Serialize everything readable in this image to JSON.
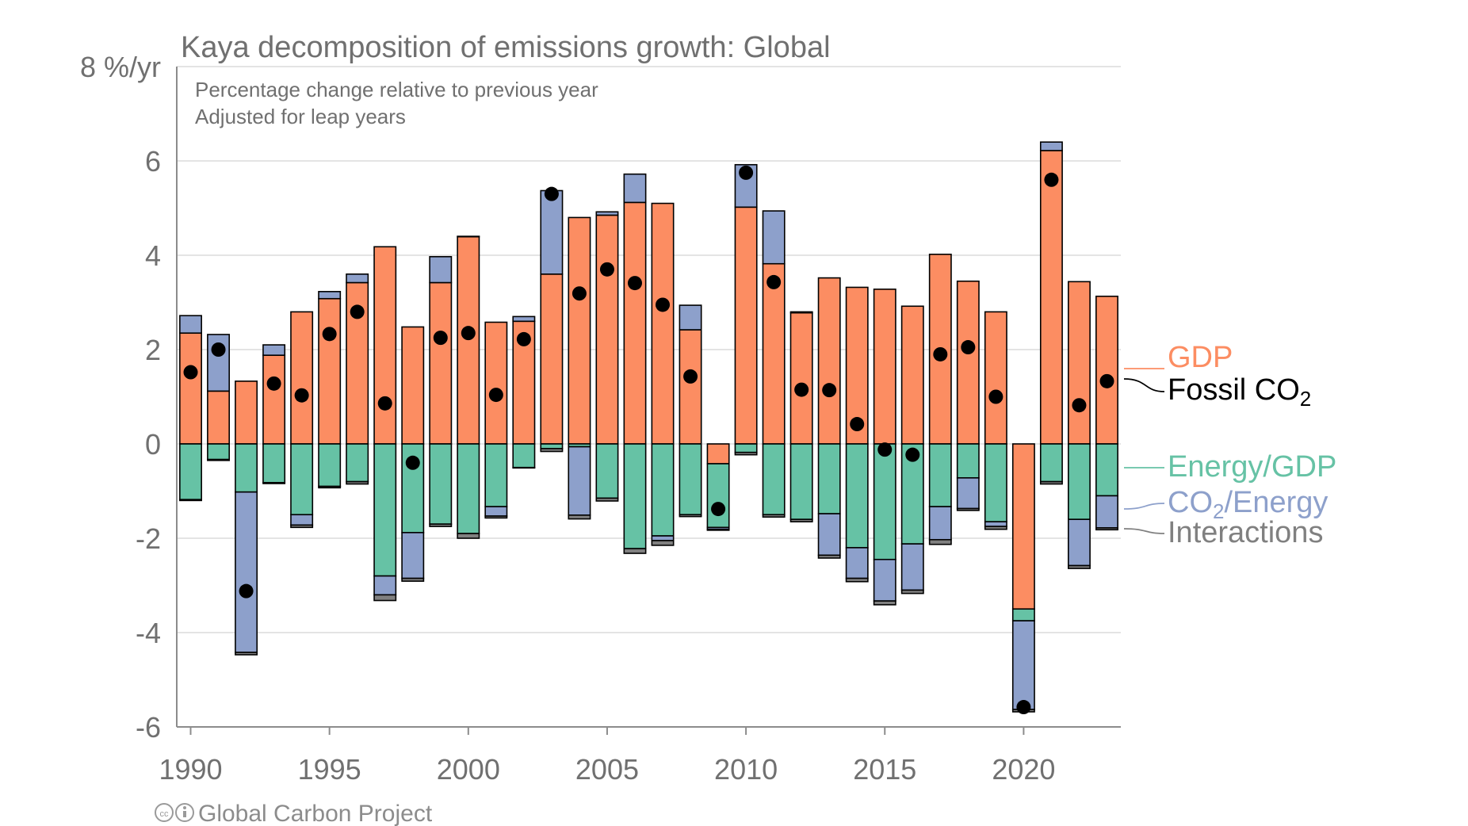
{
  "chart_data": {
    "type": "bar",
    "title": "Kaya decomposition of emissions growth: Global",
    "subtitle_lines": [
      "Percentage change relative to previous year",
      "Adjusted for leap years"
    ],
    "ylabel": "%/yr",
    "ylim": [
      -6,
      8
    ],
    "yticks": [
      -6,
      -4,
      -2,
      0,
      2,
      4,
      6,
      8
    ],
    "ytick_labels": [
      "-6",
      "-4",
      "-2",
      "0",
      "2",
      "4",
      "6",
      "8 %/yr"
    ],
    "xlim": [
      1989.5,
      2023.5
    ],
    "xticks": [
      1990,
      1995,
      2000,
      2005,
      2010,
      2015,
      2020
    ],
    "xtick_labels": [
      "1990",
      "1995",
      "2000",
      "2005",
      "2010",
      "2015",
      "2020"
    ],
    "x": [
      1990,
      1991,
      1992,
      1993,
      1994,
      1995,
      1996,
      1997,
      1998,
      1999,
      2000,
      2001,
      2002,
      2003,
      2004,
      2005,
      2006,
      2007,
      2008,
      2009,
      2010,
      2011,
      2012,
      2013,
      2014,
      2015,
      2016,
      2017,
      2018,
      2019,
      2020,
      2021,
      2022,
      2023
    ],
    "series": [
      {
        "name": "GDP",
        "color": "#fc8d62",
        "values": [
          2.35,
          1.12,
          1.33,
          1.88,
          2.8,
          3.08,
          3.42,
          4.18,
          2.48,
          3.42,
          4.4,
          2.58,
          2.6,
          3.6,
          4.8,
          4.85,
          5.12,
          5.1,
          2.42,
          -0.42,
          5.02,
          3.82,
          2.78,
          3.52,
          3.32,
          3.28,
          2.92,
          4.02,
          3.45,
          2.8,
          -3.5,
          6.22,
          3.44,
          3.13
        ]
      },
      {
        "name": "Energy/GDP",
        "color": "#66c2a5",
        "values": [
          -1.18,
          -0.33,
          -1.02,
          -0.82,
          -1.5,
          -0.9,
          -0.8,
          -2.8,
          -1.88,
          -1.7,
          -1.9,
          -1.33,
          -0.5,
          -0.1,
          -0.06,
          -1.15,
          -2.22,
          -1.95,
          -1.5,
          -1.35,
          -0.18,
          -1.5,
          -1.6,
          -1.48,
          -2.2,
          -2.45,
          -2.12,
          -1.33,
          -0.72,
          -1.65,
          -0.25,
          -0.8,
          -1.6,
          -1.1
        ]
      },
      {
        "name": "CO2/Energy",
        "color": "#8da0cb",
        "values": [
          0.37,
          1.2,
          -3.4,
          0.22,
          -0.22,
          0.15,
          0.18,
          -0.4,
          -0.97,
          0.55,
          0.0,
          -0.2,
          0.1,
          1.77,
          -1.45,
          0.07,
          0.6,
          -0.1,
          0.52,
          -0.04,
          0.9,
          1.12,
          0.02,
          -0.88,
          -0.65,
          -0.88,
          -0.98,
          -0.7,
          -0.65,
          -0.1,
          -1.88,
          0.18,
          -0.98,
          -0.68
        ]
      },
      {
        "name": "Interactions",
        "color": "#808080",
        "values": [
          -0.02,
          -0.02,
          -0.05,
          -0.02,
          -0.05,
          -0.03,
          -0.05,
          -0.12,
          -0.06,
          -0.05,
          -0.1,
          -0.04,
          -0.01,
          -0.06,
          -0.08,
          -0.06,
          -0.1,
          -0.1,
          -0.04,
          -0.02,
          -0.05,
          -0.05,
          -0.05,
          -0.06,
          -0.07,
          -0.08,
          -0.07,
          -0.1,
          -0.04,
          -0.06,
          -0.05,
          -0.05,
          -0.06,
          -0.04
        ]
      },
      {
        "name": "Fossil CO2",
        "color": "#000000",
        "marker": "dot",
        "values": [
          1.52,
          2.0,
          -3.12,
          1.28,
          1.03,
          2.33,
          2.8,
          0.86,
          -0.4,
          2.25,
          2.35,
          1.04,
          2.22,
          5.3,
          3.19,
          3.7,
          3.41,
          2.95,
          1.43,
          -1.38,
          5.75,
          3.43,
          1.15,
          1.14,
          0.42,
          -0.12,
          -0.23,
          1.9,
          2.05,
          1.0,
          -5.58,
          5.6,
          0.82,
          1.33
        ]
      }
    ],
    "legend": [
      {
        "label": "GDP",
        "color": "#fc8d62"
      },
      {
        "label": "Fossil CO",
        "sub": "2",
        "color": "#000000"
      },
      {
        "label": "Energy/GDP",
        "color": "#66c2a5"
      },
      {
        "label": "CO",
        "sub": "2",
        "suffix": "/Energy",
        "color": "#8da0cb"
      },
      {
        "label": "Interactions",
        "color": "#808080"
      }
    ],
    "legend_placement": "right"
  },
  "credit": "Global Carbon Project"
}
